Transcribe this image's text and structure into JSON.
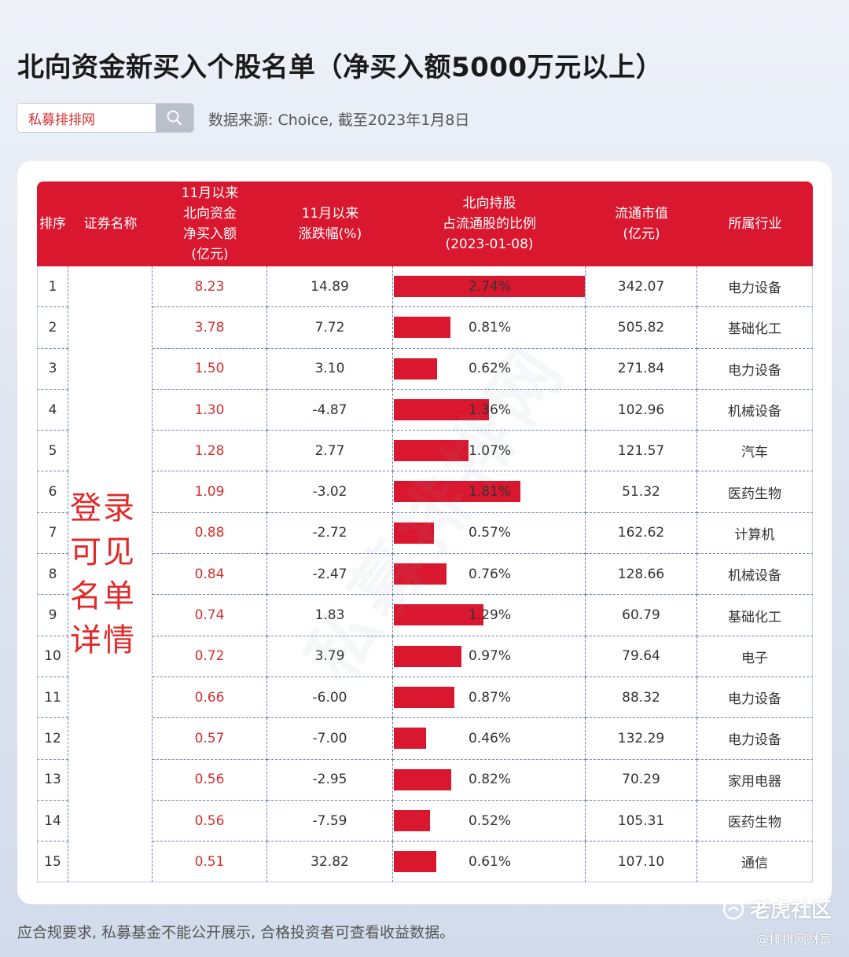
{
  "title": "北向资金新买入个股名单（净买入额5000万元以上）",
  "search": {
    "value": "私募排排网"
  },
  "source": "数据来源: Choice, 截至2023年1月8日",
  "headers": {
    "rank": "排序",
    "name": "证券名称",
    "net_buy": [
      "11月以来",
      "北向资金",
      "净买入额",
      "(亿元)"
    ],
    "change": [
      "11月以来",
      "涨跌幅(%)"
    ],
    "holding": [
      "北向持股",
      "占流通股的比例",
      "(2023-01-08)"
    ],
    "market_cap": [
      "流通市值",
      "(亿元)"
    ],
    "industry": "所属行业"
  },
  "mask_text": [
    "登录",
    "可见",
    "名单",
    "详情"
  ],
  "rows": [
    {
      "rank": "1",
      "net_buy": "8.23",
      "change": "14.89",
      "holding_pct": "2.74%",
      "holding_value": 2.74,
      "market_cap": "342.07",
      "industry": "电力设备"
    },
    {
      "rank": "2",
      "net_buy": "3.78",
      "change": "7.72",
      "holding_pct": "0.81%",
      "holding_value": 0.81,
      "market_cap": "505.82",
      "industry": "基础化工"
    },
    {
      "rank": "3",
      "net_buy": "1.50",
      "change": "3.10",
      "holding_pct": "0.62%",
      "holding_value": 0.62,
      "market_cap": "271.84",
      "industry": "电力设备"
    },
    {
      "rank": "4",
      "net_buy": "1.30",
      "change": "-4.87",
      "holding_pct": "1.36%",
      "holding_value": 1.36,
      "market_cap": "102.96",
      "industry": "机械设备"
    },
    {
      "rank": "5",
      "net_buy": "1.28",
      "change": "2.77",
      "holding_pct": "1.07%",
      "holding_value": 1.07,
      "market_cap": "121.57",
      "industry": "汽车"
    },
    {
      "rank": "6",
      "net_buy": "1.09",
      "change": "-3.02",
      "holding_pct": "1.81%",
      "holding_value": 1.81,
      "market_cap": "51.32",
      "industry": "医药生物"
    },
    {
      "rank": "7",
      "net_buy": "0.88",
      "change": "-2.72",
      "holding_pct": "0.57%",
      "holding_value": 0.57,
      "market_cap": "162.62",
      "industry": "计算机"
    },
    {
      "rank": "8",
      "net_buy": "0.84",
      "change": "-2.47",
      "holding_pct": "0.76%",
      "holding_value": 0.76,
      "market_cap": "128.66",
      "industry": "机械设备"
    },
    {
      "rank": "9",
      "net_buy": "0.74",
      "change": "1.83",
      "holding_pct": "1.29%",
      "holding_value": 1.29,
      "market_cap": "60.79",
      "industry": "基础化工"
    },
    {
      "rank": "10",
      "net_buy": "0.72",
      "change": "3.79",
      "holding_pct": "0.97%",
      "holding_value": 0.97,
      "market_cap": "79.64",
      "industry": "电子"
    },
    {
      "rank": "11",
      "net_buy": "0.66",
      "change": "-6.00",
      "holding_pct": "0.87%",
      "holding_value": 0.87,
      "market_cap": "88.32",
      "industry": "电力设备"
    },
    {
      "rank": "12",
      "net_buy": "0.57",
      "change": "-7.00",
      "holding_pct": "0.46%",
      "holding_value": 0.46,
      "market_cap": "132.29",
      "industry": "电力设备"
    },
    {
      "rank": "13",
      "net_buy": "0.56",
      "change": "-2.95",
      "holding_pct": "0.82%",
      "holding_value": 0.82,
      "market_cap": "70.29",
      "industry": "家用电器"
    },
    {
      "rank": "14",
      "net_buy": "0.56",
      "change": "-7.59",
      "holding_pct": "0.52%",
      "holding_value": 0.52,
      "market_cap": "105.31",
      "industry": "医药生物"
    },
    {
      "rank": "15",
      "net_buy": "0.51",
      "change": "32.82",
      "holding_pct": "0.61%",
      "holding_value": 0.61,
      "market_cap": "107.10",
      "industry": "通信"
    }
  ],
  "holding_max": 2.74,
  "watermark": "私募排排网",
  "footer": "应合规要求, 私募基金不能公开展示, 合格投资者可查看收益数据。",
  "logo": {
    "name": "老虎社区",
    "sub": "@排排网财富"
  },
  "colors": {
    "accent": "#d9172e",
    "net_text": "#d23030"
  }
}
